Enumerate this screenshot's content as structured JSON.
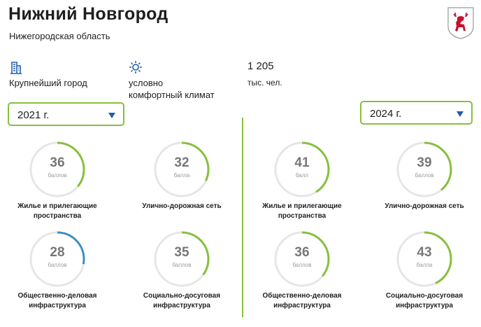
{
  "header": {
    "city": "Нижний Новгород",
    "region": "Нижегородская область",
    "coat_of_arms_icon": "deer-coat-of-arms-icon"
  },
  "facts": {
    "city_type": {
      "icon": "building-icon",
      "label": "Крупнейший город"
    },
    "climate": {
      "icon": "sun-icon",
      "line1": "условно",
      "line2": "комфортный климат"
    },
    "population": {
      "value": "1 205",
      "unit": "тыс. чел."
    }
  },
  "colors": {
    "accent": "#86c03c",
    "track": "#e6e6e6",
    "highlight": "#3b8fc4",
    "arrow": "#1f5ea8",
    "coat_red": "#c8102e"
  },
  "years": {
    "left": {
      "selected": "2021 г."
    },
    "right": {
      "selected": "2024 г."
    }
  },
  "metrics_left": [
    {
      "score": "36",
      "unit": "баллов",
      "fill": 0.36,
      "color": "#86c03c",
      "line1": "Жилье и прилегающие",
      "line2": "пространства"
    },
    {
      "score": "32",
      "unit": "балла",
      "fill": 0.32,
      "color": "#86c03c",
      "line1": "Улично-дорожная сеть",
      "line2": ""
    },
    {
      "score": "28",
      "unit": "баллов",
      "fill": 0.28,
      "color": "#3b8fc4",
      "line1": "Общественно-деловая",
      "line2": "инфраструктура"
    },
    {
      "score": "35",
      "unit": "баллов",
      "fill": 0.35,
      "color": "#86c03c",
      "line1": "Социально-досуговая",
      "line2": "инфраструктура"
    }
  ],
  "metrics_right": [
    {
      "score": "41",
      "unit": "балл",
      "fill": 0.41,
      "color": "#86c03c",
      "line1": "Жилье и прилегающие",
      "line2": "пространства"
    },
    {
      "score": "39",
      "unit": "баллов",
      "fill": 0.39,
      "color": "#86c03c",
      "line1": "Улично-дорожная сеть",
      "line2": ""
    },
    {
      "score": "36",
      "unit": "баллов",
      "fill": 0.36,
      "color": "#86c03c",
      "line1": "Общественно-деловая",
      "line2": "инфраструктура"
    },
    {
      "score": "43",
      "unit": "балла",
      "fill": 0.43,
      "color": "#86c03c",
      "line1": "Социально-досуговая",
      "line2": "инфраструктура"
    }
  ]
}
